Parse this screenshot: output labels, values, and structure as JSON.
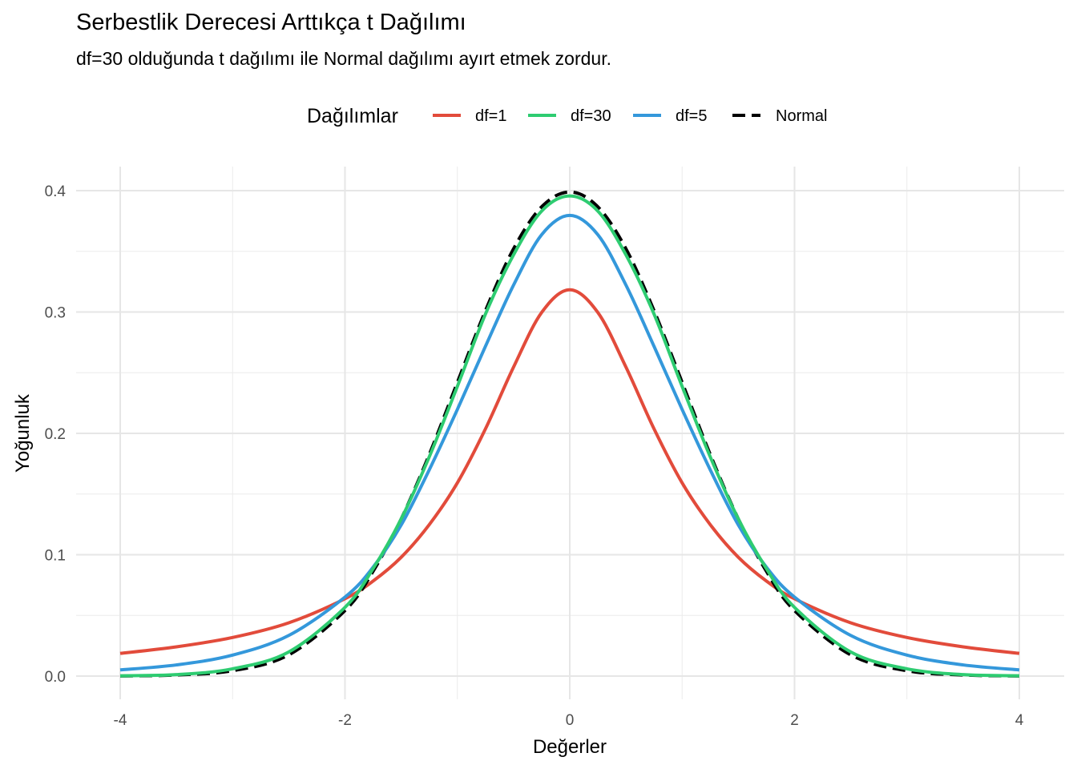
{
  "chart_data": {
    "type": "line",
    "title": "Serbestlik Derecesi Arttıkça t Dağılımı",
    "subtitle": "df=30 olduğunda t dağılımı ile Normal dağılımı ayırt etmek zordur.",
    "xlabel": "Değerler",
    "ylabel": "Yoğunluk",
    "xlim": [
      -4,
      4
    ],
    "ylim": [
      0,
      0.4
    ],
    "x_ticks": [
      "-4",
      "-2",
      "0",
      "2",
      "4"
    ],
    "y_ticks": [
      "0.0",
      "0.1",
      "0.2",
      "0.3",
      "0.4"
    ],
    "grid": true,
    "legend": {
      "title": "Dağılımlar",
      "position": "top",
      "entries": [
        "df=1",
        "df=30",
        "df=5",
        "Normal"
      ]
    },
    "x": [
      -4.0,
      -3.5,
      -3.0,
      -2.5,
      -2.0,
      -1.75,
      -1.5,
      -1.25,
      -1.0,
      -0.75,
      -0.5,
      -0.25,
      0.0,
      0.25,
      0.5,
      0.75,
      1.0,
      1.25,
      1.5,
      1.75,
      2.0,
      2.5,
      3.0,
      3.5,
      4.0
    ],
    "series": [
      {
        "name": "df=1",
        "color": "#e24b3b",
        "dash": false,
        "values": [
          0.0187,
          0.0241,
          0.0318,
          0.0439,
          0.0637,
          0.0783,
          0.0979,
          0.1248,
          0.1592,
          0.2037,
          0.2546,
          0.2996,
          0.3183,
          0.2996,
          0.2546,
          0.2037,
          0.1592,
          0.1248,
          0.0979,
          0.0783,
          0.0637,
          0.0439,
          0.0318,
          0.0241,
          0.0187
        ]
      },
      {
        "name": "df=30",
        "color": "#2ecc71",
        "dash": false,
        "values": [
          0.0002,
          0.0012,
          0.006,
          0.0199,
          0.0566,
          0.0885,
          0.1295,
          0.1807,
          0.2387,
          0.2983,
          0.3471,
          0.3832,
          0.3956,
          0.3832,
          0.3471,
          0.2983,
          0.2387,
          0.1807,
          0.1295,
          0.0885,
          0.0566,
          0.0199,
          0.006,
          0.0012,
          0.0002
        ]
      },
      {
        "name": "df=5",
        "color": "#3498db",
        "dash": false,
        "values": [
          0.0051,
          0.0092,
          0.0173,
          0.0335,
          0.0651,
          0.0897,
          0.1245,
          0.17,
          0.2197,
          0.2717,
          0.3222,
          0.3637,
          0.3796,
          0.3637,
          0.3222,
          0.2717,
          0.2197,
          0.17,
          0.1245,
          0.0897,
          0.0651,
          0.0335,
          0.0173,
          0.0092,
          0.0051
        ]
      },
      {
        "name": "Normal",
        "color": "#000000",
        "dash": true,
        "values": [
          0.0001,
          0.0009,
          0.0044,
          0.0175,
          0.054,
          0.0863,
          0.1295,
          0.1826,
          0.242,
          0.3011,
          0.3521,
          0.3867,
          0.3989,
          0.3867,
          0.3521,
          0.3011,
          0.242,
          0.1826,
          0.1295,
          0.0863,
          0.054,
          0.0175,
          0.0044,
          0.0009,
          0.0001
        ]
      }
    ]
  }
}
